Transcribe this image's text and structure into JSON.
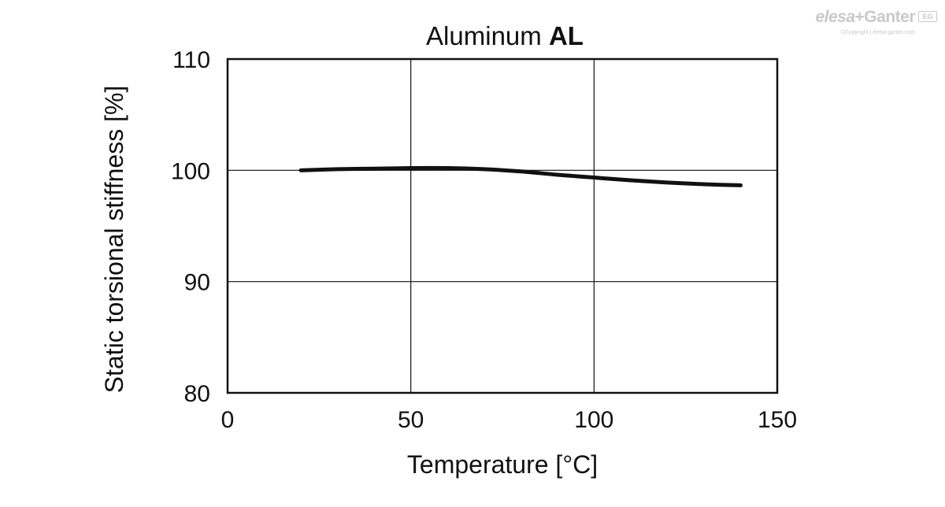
{
  "title": {
    "main": "Aluminum",
    "bold": "AL"
  },
  "watermark": {
    "logo_part1": "elesa",
    "logo_part2": "+Ganter",
    "badge": "EG",
    "copyright": "©Copyright | elesa-ganter.com"
  },
  "chart_data": {
    "type": "line",
    "title": "Aluminum AL",
    "xlabel": "Temperature [°C]",
    "ylabel": "Static torsional stiffness [%]",
    "xlim": [
      0,
      150
    ],
    "ylim": [
      80,
      110
    ],
    "xticks": [
      0,
      50,
      100,
      150
    ],
    "yticks": [
      80,
      90,
      100,
      110
    ],
    "grid": true,
    "series": [
      {
        "color": "#111111",
        "x": [
          20,
          30,
          40,
          50,
          60,
          70,
          80,
          90,
          100,
          110,
          120,
          130,
          140
        ],
        "y": [
          100.0,
          100.1,
          100.15,
          100.2,
          100.2,
          100.1,
          99.9,
          99.6,
          99.35,
          99.1,
          98.9,
          98.75,
          98.65
        ]
      }
    ]
  }
}
